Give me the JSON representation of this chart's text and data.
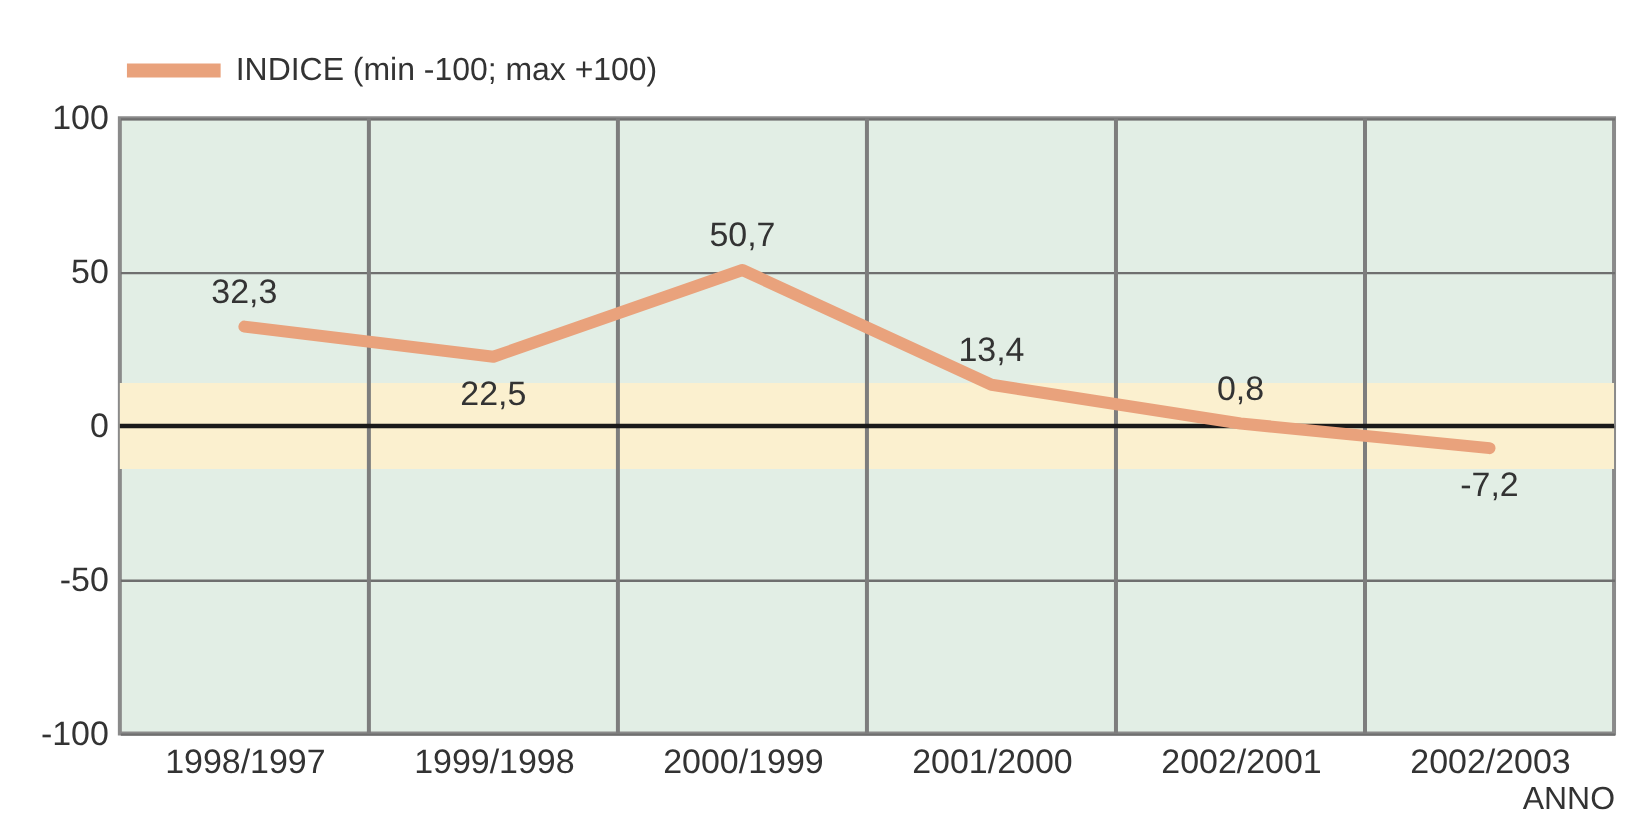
{
  "chart_data": {
    "type": "line",
    "xlabel": "ANNO",
    "categories": [
      "1998/1997",
      "1999/1998",
      "2000/1999",
      "2001/2000",
      "2002/2001",
      "2002/2003"
    ],
    "series": [
      {
        "name": "INDICE (min -100; max +100)",
        "color": "#e9a27c",
        "values": [
          32.3,
          22.5,
          50.7,
          13.4,
          0.8,
          -7.2
        ],
        "value_labels": [
          "32,3",
          "22,5",
          "50,7",
          "13,4",
          "0,8",
          "-7,2"
        ]
      }
    ],
    "ylim": [
      -100,
      100
    ],
    "yticks": [
      -100,
      -50,
      0,
      50,
      100
    ],
    "grid": true,
    "legend": "top left",
    "line_style": "solid",
    "ref_lines": [
      {
        "axis": "y",
        "value": 0,
        "color": "#1a1a1a"
      }
    ],
    "bands": [
      {
        "axis": "y",
        "from": -14,
        "to": 14,
        "color": "#fbf0cf"
      }
    ]
  }
}
